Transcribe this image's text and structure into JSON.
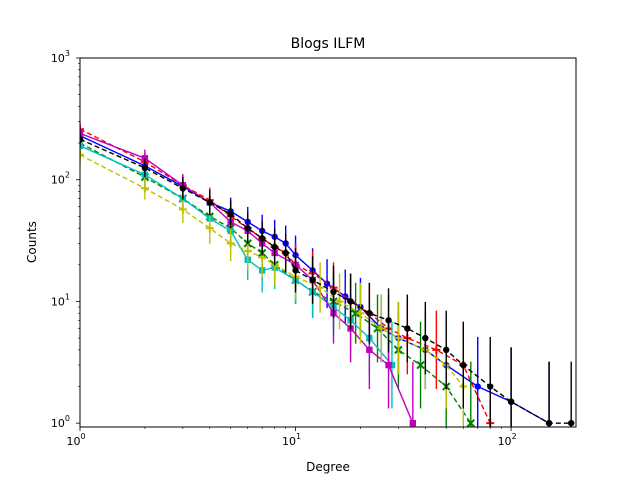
{
  "chart_data": {
    "type": "scatter",
    "title": "Blogs ILFM",
    "xlabel": "Degree",
    "ylabel": "Counts",
    "xscale": "log",
    "yscale": "log",
    "xlim": [
      1,
      200
    ],
    "ylim": [
      0.93,
      1000
    ],
    "x_ticks": [
      {
        "value": 1,
        "base": "10",
        "exp": "0"
      },
      {
        "value": 10,
        "base": "10",
        "exp": "1"
      },
      {
        "value": 100,
        "base": "10",
        "exp": "2"
      }
    ],
    "y_ticks": [
      {
        "value": 1,
        "base": "10",
        "exp": "0"
      },
      {
        "value": 10,
        "base": "10",
        "exp": "1"
      },
      {
        "value": 100,
        "base": "10",
        "exp": "2"
      },
      {
        "value": 1000,
        "base": "10",
        "exp": "3"
      }
    ],
    "grid": false,
    "legend": "none",
    "series": [
      {
        "color": "#0000ff",
        "marker": "circle",
        "line": "solid",
        "x": [
          1,
          2,
          3,
          4,
          5,
          6,
          7,
          8,
          9,
          10,
          12,
          14,
          17,
          20,
          25,
          30,
          40,
          50,
          70,
          100,
          150
        ],
        "y": [
          230,
          130,
          88,
          65,
          55,
          45,
          38,
          34,
          30,
          24,
          18,
          14,
          11,
          9,
          6,
          5,
          4,
          3,
          2,
          1.5,
          1
        ]
      },
      {
        "color": "#ff0000",
        "marker": "plus",
        "line": "dashed",
        "x": [
          1,
          2,
          3,
          4,
          5,
          6,
          7,
          8,
          9,
          10,
          12,
          15,
          18,
          22,
          27,
          33,
          45,
          60,
          80
        ],
        "y": [
          260,
          140,
          90,
          68,
          50,
          40,
          33,
          28,
          25,
          20,
          17,
          13,
          10,
          8,
          6,
          5,
          4,
          3,
          1
        ]
      },
      {
        "color": "#008000",
        "marker": "x",
        "line": "dashed",
        "x": [
          1,
          2,
          3,
          4,
          5,
          6,
          7,
          8,
          10,
          12,
          15,
          19,
          24,
          30,
          38,
          50,
          65
        ],
        "y": [
          200,
          105,
          70,
          50,
          40,
          30,
          25,
          20,
          15,
          12,
          10,
          8,
          6,
          4,
          3,
          2,
          1
        ]
      },
      {
        "color": "#00bfbf",
        "marker": "square",
        "line": "solid",
        "x": [
          1,
          2,
          3,
          4,
          5,
          6,
          7,
          8,
          10,
          12,
          15,
          18,
          22,
          28
        ],
        "y": [
          190,
          110,
          70,
          48,
          38,
          22,
          18,
          19,
          15,
          12,
          9,
          7,
          5,
          3
        ]
      },
      {
        "color": "#bf00bf",
        "marker": "square",
        "line": "solid",
        "x": [
          1,
          2,
          3,
          4,
          5,
          6,
          7,
          8,
          10,
          12,
          15,
          18,
          22,
          27,
          35
        ],
        "y": [
          240,
          150,
          90,
          65,
          45,
          38,
          30,
          25,
          20,
          15,
          8,
          6,
          4,
          3,
          1
        ]
      },
      {
        "color": "#bfbf00",
        "marker": "plus",
        "line": "dashed",
        "x": [
          1,
          2,
          3,
          4,
          5,
          6,
          7,
          8,
          10,
          13,
          16,
          20,
          25,
          30,
          40,
          50,
          60
        ],
        "y": [
          160,
          85,
          57,
          40,
          30,
          26,
          23,
          20,
          16,
          13,
          10,
          8,
          6,
          5,
          4,
          3,
          2
        ]
      },
      {
        "color": "#000000",
        "marker": "circle",
        "line": "dashed",
        "x": [
          1,
          2,
          3,
          4,
          5,
          6,
          7,
          8,
          9,
          10,
          12,
          15,
          18,
          22,
          27,
          33,
          40,
          50,
          60,
          80,
          100,
          150,
          190
        ],
        "y": [
          215,
          125,
          85,
          65,
          52,
          40,
          33,
          28,
          25,
          18,
          15,
          12,
          10,
          8,
          7,
          6,
          5,
          4,
          3,
          2,
          1.5,
          1,
          1
        ]
      }
    ]
  }
}
